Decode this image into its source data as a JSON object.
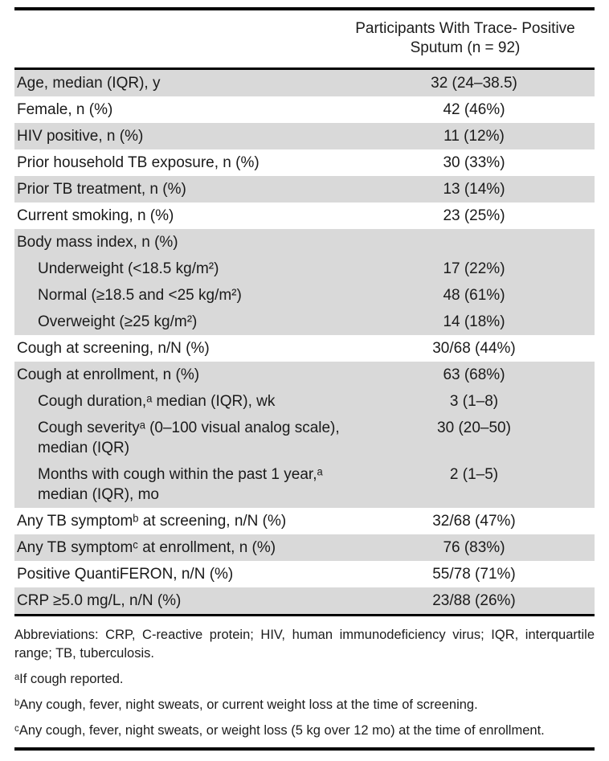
{
  "table": {
    "header": {
      "line1": "Participants With Trace- Positive",
      "line2": "Sputum (n = 92)"
    },
    "rows": [
      {
        "label": "Age, median (IQR), y",
        "value": "32 (24–38.5)",
        "indent": false,
        "shaded": true
      },
      {
        "label": "Female, n (%)",
        "value": "42 (46%)",
        "indent": false,
        "shaded": false
      },
      {
        "label": "HIV positive, n (%)",
        "value": "11 (12%)",
        "indent": false,
        "shaded": true
      },
      {
        "label": "Prior household TB exposure, n (%)",
        "value": "30 (33%)",
        "indent": false,
        "shaded": false
      },
      {
        "label": "Prior TB treatment, n (%)",
        "value": "13 (14%)",
        "indent": false,
        "shaded": true
      },
      {
        "label": "Current smoking, n (%)",
        "value": "23 (25%)",
        "indent": false,
        "shaded": false
      },
      {
        "label": "Body mass index, n (%)",
        "value": "",
        "indent": false,
        "shaded": true
      },
      {
        "label": "Underweight (<18.5 kg/m²)",
        "value": "17 (22%)",
        "indent": true,
        "shaded": true
      },
      {
        "label": "Normal (≥18.5 and <25 kg/m²)",
        "value": "48 (61%)",
        "indent": true,
        "shaded": true
      },
      {
        "label": "Overweight (≥25 kg/m²)",
        "value": "14 (18%)",
        "indent": true,
        "shaded": true
      },
      {
        "label": "Cough at screening, n/N (%)",
        "value": "30/68 (44%)",
        "indent": false,
        "shaded": false
      },
      {
        "label": "Cough at enrollment, n (%)",
        "value": "63 (68%)",
        "indent": false,
        "shaded": true
      },
      {
        "label": "Cough duration,ᵃ median (IQR), wk",
        "value": "3 (1–8)",
        "indent": true,
        "shaded": true
      },
      {
        "label": "Cough severityᵃ (0–100 visual analog scale), median (IQR)",
        "value": "30 (20–50)",
        "indent": true,
        "shaded": true
      },
      {
        "label": "Months with cough within the past 1 year,ᵃ median (IQR), mo",
        "value": "2 (1–5)",
        "indent": true,
        "shaded": true
      },
      {
        "label": "Any TB symptomᵇ at screening, n/N (%)",
        "value": "32/68 (47%)",
        "indent": false,
        "shaded": false
      },
      {
        "label": "Any TB symptomᶜ at enrollment, n (%)",
        "value": "76 (83%)",
        "indent": false,
        "shaded": true
      },
      {
        "label": "Positive QuantiFERON, n/N (%)",
        "value": "55/78 (71%)",
        "indent": false,
        "shaded": false
      },
      {
        "label": "CRP ≥5.0 mg/L, n/N (%)",
        "value": "23/88 (26%)",
        "indent": false,
        "shaded": true
      }
    ],
    "footnotes": [
      {
        "text": "Abbreviations: CRP, C-reactive protein; HIV, human immunodeficiency virus; IQR, interquartile range; TB, tuberculosis.",
        "justify": true
      },
      {
        "text": "ᵃIf cough reported.",
        "justify": false
      },
      {
        "text": "ᵇAny cough, fever, night sweats, or current weight loss at the time of screening.",
        "justify": false
      },
      {
        "text": "ᶜAny cough, fever, night sweats, or weight loss (5 kg over 12 mo) at the time of enrollment.",
        "justify": false
      }
    ],
    "colors": {
      "row_shade": "#d9d9d9",
      "rule": "#000000",
      "text": "#1a1a1a"
    }
  }
}
